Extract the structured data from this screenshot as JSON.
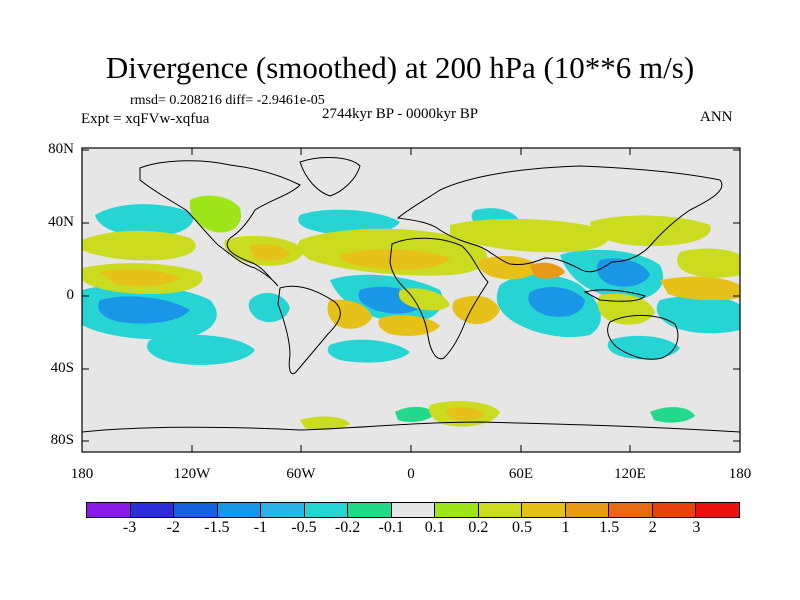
{
  "title": "Divergence (smoothed) at 200 hPa (10**6 m/s)",
  "stats": "rmsd= 0.208216 diff= -2.9461e-05",
  "period": "2744kyr BP - 0000kyr BP",
  "experiment": "Expt = xqFVw-xqfua",
  "season": "ANN",
  "lat_labels": [
    "80N",
    "40N",
    "0",
    "40S",
    "80S"
  ],
  "lon_labels": [
    "180",
    "120W",
    "60W",
    "0",
    "60E",
    "120E",
    "180"
  ],
  "colorbar": {
    "colors": [
      "#8a1ae6",
      "#2d2ddb",
      "#1561e0",
      "#1a96e6",
      "#29b3e6",
      "#26d4d4",
      "#22d98a",
      "#e6e6e6",
      "#9ee61a",
      "#cbdb1f",
      "#e6c11a",
      "#e69a18",
      "#e66a14",
      "#e8420f",
      "#eb1010"
    ],
    "labels": [
      "-3",
      "-2",
      "-1.5",
      "-1",
      "-0.5",
      "-0.2",
      "-0.1",
      "0.1",
      "0.2",
      "0.5",
      "1",
      "1.5",
      "2",
      "3"
    ]
  }
}
